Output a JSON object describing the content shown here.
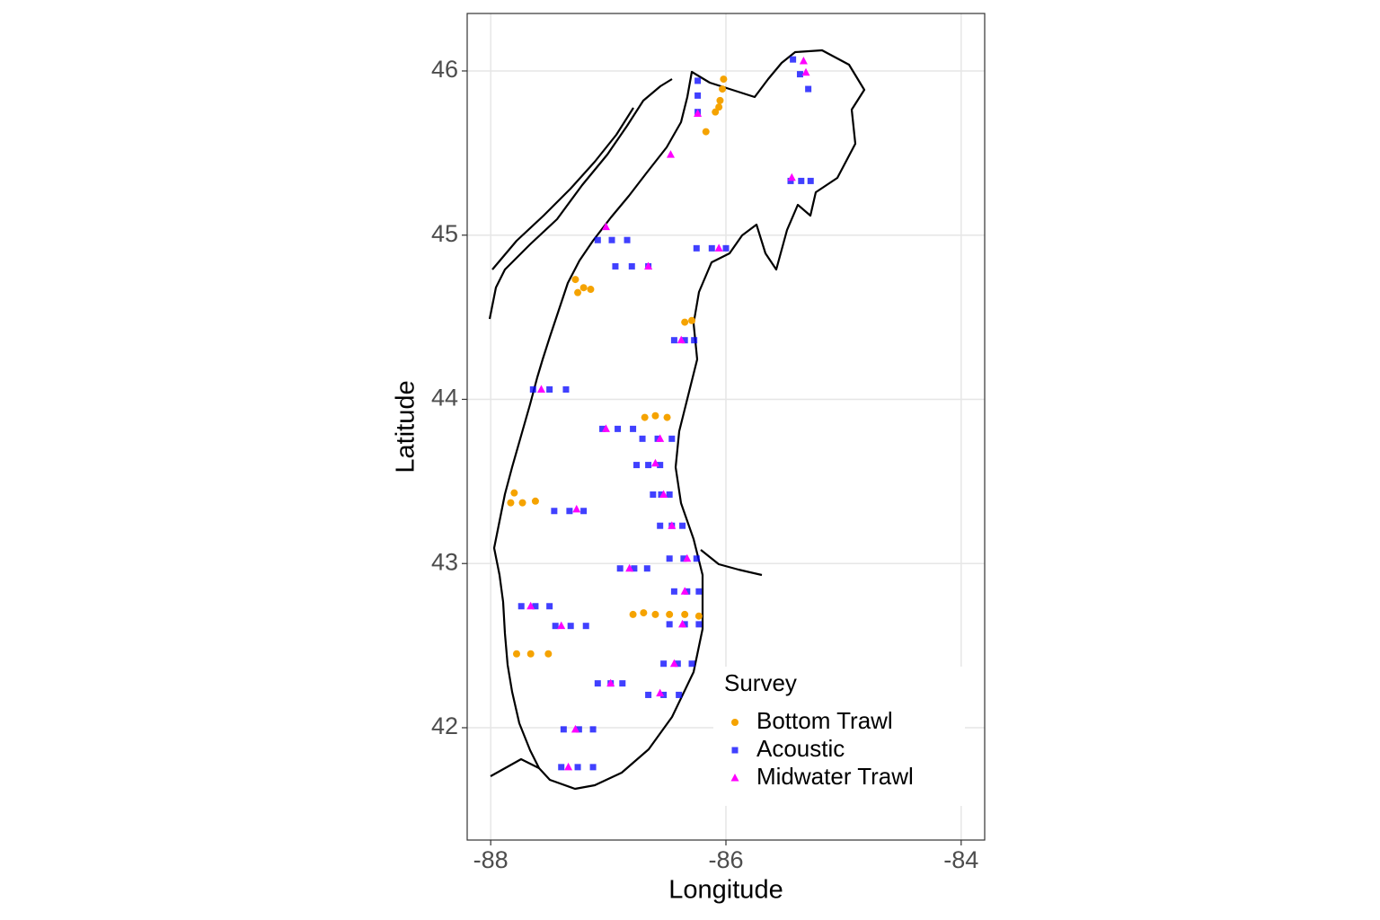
{
  "chart_data": {
    "type": "scatter",
    "x_label": "Longitude",
    "y_label": "Latitude",
    "xlim": [
      -88.2,
      -83.8
    ],
    "ylim": [
      41.316,
      46.35
    ],
    "xticks": [
      -88,
      -86,
      -84
    ],
    "yticks": [
      42,
      43,
      44,
      45,
      46
    ],
    "grid": true,
    "legend_title": "Survey",
    "legend_position": "bottom-right",
    "series": [
      {
        "name": "Bottom Trawl",
        "color": "#f5a300",
        "shape": "circle",
        "x": [
          -86.02,
          -86.03,
          -86.05,
          -86.06,
          -86.09,
          -86.17,
          -87.28,
          -87.26,
          -87.21,
          -87.15,
          -86.35,
          -86.29,
          -86.69,
          -86.6,
          -86.5,
          -87.8,
          -87.83,
          -87.73,
          -87.62,
          -86.79,
          -86.7,
          -86.6,
          -86.48,
          -86.35,
          -86.23,
          -87.78,
          -87.66,
          -87.51
        ],
        "values": [
          45.95,
          45.89,
          45.82,
          45.78,
          45.75,
          45.63,
          44.73,
          44.65,
          44.68,
          44.67,
          44.47,
          44.48,
          43.89,
          43.9,
          43.89,
          43.43,
          43.37,
          43.37,
          43.38,
          42.69,
          42.7,
          42.69,
          42.69,
          42.69,
          42.68,
          42.45,
          42.45,
          42.45
        ]
      },
      {
        "name": "Acoustic",
        "color": "#0000ff",
        "shape": "square",
        "x": [
          -87.09,
          -86.97,
          -86.84,
          -86.94,
          -86.8,
          -86.66,
          -86.25,
          -86.12,
          -86.0,
          -86.44,
          -86.35,
          -86.27,
          -87.64,
          -87.5,
          -87.36,
          -87.05,
          -86.92,
          -86.79,
          -86.71,
          -86.58,
          -86.46,
          -86.76,
          -86.66,
          -86.56,
          -86.62,
          -86.55,
          -86.48,
          -87.46,
          -87.33,
          -87.21,
          -86.56,
          -86.46,
          -86.37,
          -86.48,
          -86.36,
          -86.25,
          -86.9,
          -86.78,
          -86.67,
          -86.44,
          -86.33,
          -86.23,
          -87.74,
          -87.62,
          -87.5,
          -86.48,
          -86.35,
          -86.23,
          -87.45,
          -87.32,
          -87.19,
          -86.53,
          -86.41,
          -86.29,
          -87.09,
          -86.98,
          -86.88,
          -86.66,
          -86.53,
          -86.4,
          -87.38,
          -87.25,
          -87.13,
          -87.4,
          -87.26,
          -87.13,
          -85.45,
          -85.36,
          -85.28,
          -85.43,
          -85.37,
          -85.3,
          -86.24,
          -86.24,
          -86.24
        ],
        "values": [
          44.97,
          44.97,
          44.97,
          44.81,
          44.81,
          44.81,
          44.92,
          44.92,
          44.92,
          44.36,
          44.36,
          44.36,
          44.06,
          44.06,
          44.06,
          43.82,
          43.82,
          43.82,
          43.76,
          43.76,
          43.76,
          43.6,
          43.6,
          43.6,
          43.42,
          43.42,
          43.42,
          43.32,
          43.32,
          43.32,
          43.23,
          43.23,
          43.23,
          43.03,
          43.03,
          43.03,
          42.97,
          42.97,
          42.97,
          42.83,
          42.83,
          42.83,
          42.74,
          42.74,
          42.74,
          42.63,
          42.63,
          42.63,
          42.62,
          42.62,
          42.62,
          42.39,
          42.39,
          42.39,
          42.27,
          42.27,
          42.27,
          42.2,
          42.2,
          42.2,
          41.99,
          41.99,
          41.99,
          41.76,
          41.76,
          41.76,
          45.33,
          45.33,
          45.33,
          46.07,
          45.98,
          45.89,
          45.94,
          45.85,
          45.75
        ]
      },
      {
        "name": "Midwater Trawl",
        "color": "#ff00ff",
        "shape": "triangle",
        "x": [
          -86.24,
          -86.47,
          -85.34,
          -85.32,
          -85.44,
          -87.02,
          -86.66,
          -86.06,
          -86.38,
          -87.57,
          -87.02,
          -86.56,
          -86.6,
          -86.53,
          -87.27,
          -86.46,
          -86.33,
          -86.82,
          -86.35,
          -87.66,
          -86.37,
          -87.4,
          -86.44,
          -86.98,
          -86.56,
          -87.28,
          -87.34
        ],
        "values": [
          45.74,
          45.49,
          46.06,
          45.99,
          45.35,
          45.05,
          44.81,
          44.92,
          44.36,
          44.06,
          43.82,
          43.76,
          43.61,
          43.42,
          43.33,
          43.23,
          43.03,
          42.97,
          42.83,
          42.74,
          42.63,
          42.62,
          42.39,
          42.27,
          42.21,
          41.99,
          41.76
        ]
      }
    ]
  }
}
